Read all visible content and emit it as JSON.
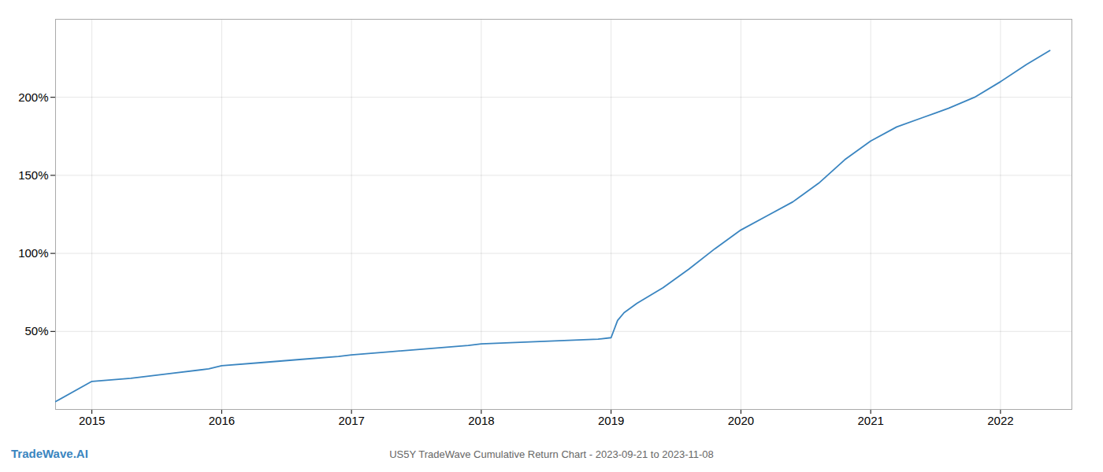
{
  "chart_data": {
    "type": "line",
    "title": "US5Y TradeWave Cumulative Return Chart - 2023-09-21 to 2023-11-08",
    "annotations": [
      {
        "text": "TradeWave.AI"
      }
    ],
    "color": "#3a85c0",
    "grid": true,
    "xlim": [
      2014.72,
      2022.55
    ],
    "xticks": [
      2015,
      2016,
      2017,
      2018,
      2019,
      2020,
      2021,
      2022
    ],
    "ylim": [
      0,
      250
    ],
    "yticks": [
      {
        "value": 50,
        "label": "50%"
      },
      {
        "value": 100,
        "label": "100%"
      },
      {
        "value": 150,
        "label": "150%"
      },
      {
        "value": 200,
        "label": "200%"
      }
    ],
    "x": [
      2014.72,
      2015.0,
      2015.3,
      2015.6,
      2015.9,
      2016.0,
      2016.3,
      2016.6,
      2016.9,
      2017.0,
      2017.3,
      2017.6,
      2017.9,
      2018.0,
      2018.3,
      2018.6,
      2018.9,
      2019.0,
      2019.05,
      2019.1,
      2019.2,
      2019.4,
      2019.6,
      2019.8,
      2020.0,
      2020.2,
      2020.4,
      2020.6,
      2020.8,
      2021.0,
      2021.2,
      2021.4,
      2021.5,
      2021.6,
      2021.8,
      2022.0,
      2022.2,
      2022.38
    ],
    "values": [
      5,
      18,
      20,
      23,
      26,
      28,
      30,
      32,
      34,
      35,
      37,
      39,
      41,
      42,
      43,
      44,
      45,
      46,
      57,
      62,
      68,
      78,
      90,
      103,
      115,
      124,
      133,
      145,
      160,
      172,
      181,
      187,
      190,
      193,
      200,
      210,
      221,
      230
    ]
  }
}
